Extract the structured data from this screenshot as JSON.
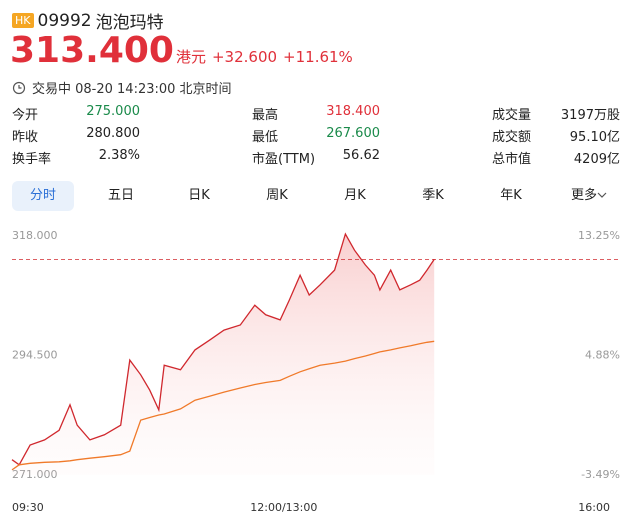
{
  "header": {
    "badge": "HK",
    "code": "09992",
    "name": "泡泡玛特"
  },
  "quote": {
    "price": "313.400",
    "currency": "港元",
    "change": "+32.600",
    "change_pct": "+11.61%",
    "status": "交易中 08-20 14:23:00 北京时间"
  },
  "stats": [
    {
      "label": "今开",
      "value": "275.000",
      "color": "#1a8a4a"
    },
    {
      "label": "最高",
      "value": "318.400",
      "color": "#e0303a"
    },
    {
      "label": "成交量",
      "value": "3197万股"
    },
    {
      "label": "昨收",
      "value": "280.800"
    },
    {
      "label": "最低",
      "value": "267.600",
      "color": "#1a8a4a"
    },
    {
      "label": "成交额",
      "value": "95.10亿"
    },
    {
      "label": "换手率",
      "value": "2.38%"
    },
    {
      "label": "市盈(TTM)",
      "value": "56.62"
    },
    {
      "label": "总市值",
      "value": "4209亿"
    }
  ],
  "tabs": [
    "分时",
    "五日",
    "日K",
    "周K",
    "月K",
    "季K",
    "年K",
    "更多"
  ],
  "chart_data": {
    "type": "line",
    "x": [
      0,
      4,
      10,
      18,
      26,
      32,
      36,
      43,
      51,
      60,
      65,
      71,
      76,
      81,
      84,
      93,
      101,
      109,
      117,
      126,
      134,
      140,
      148,
      153,
      159,
      164,
      170,
      178,
      184,
      189,
      195,
      200,
      203,
      209,
      214,
      220,
      225,
      229,
      233
    ],
    "series": [
      {
        "color": "#d0282e",
        "values": [
          274.0,
          273.0,
          276.9,
          277.9,
          279.8,
          284.8,
          280.8,
          277.9,
          278.9,
          280.8,
          293.6,
          290.7,
          287.7,
          283.8,
          292.6,
          291.7,
          295.6,
          297.5,
          299.5,
          300.5,
          304.4,
          302.5,
          301.5,
          305.4,
          310.3,
          306.4,
          308.4,
          311.3,
          318.4,
          315.2,
          312.3,
          310.3,
          307.4,
          311.3,
          307.4,
          308.4,
          309.3,
          311.3,
          313.4
        ]
      },
      {
        "color": "#f07a2a",
        "values": [
          272.0,
          273.0,
          273.3,
          273.5,
          273.6,
          273.8,
          274.0,
          274.3,
          274.6,
          275.0,
          275.7,
          281.8,
          282.3,
          282.8,
          283.0,
          284.0,
          285.7,
          286.5,
          287.3,
          288.1,
          288.8,
          289.2,
          289.6,
          290.4,
          291.3,
          291.9,
          292.6,
          293.0,
          293.4,
          293.9,
          294.4,
          294.9,
          295.2,
          295.6,
          296.0,
          296.4,
          296.8,
          297.1,
          297.3
        ]
      }
    ],
    "xlim": [
      0,
      330
    ],
    "xticks": [
      {
        "value": 0,
        "label": "09:30"
      },
      {
        "value": 150,
        "label": "12:00/13:00"
      },
      {
        "value": 330,
        "label": "16:00"
      }
    ],
    "ylim": [
      271,
      318
    ],
    "yticks": [
      {
        "value": 318,
        "label": "318.000"
      },
      {
        "value": 294.5,
        "label": "294.500"
      },
      {
        "value": 271,
        "label": "271.000"
      }
    ],
    "y2lim": [
      -3.49,
      13.25
    ],
    "y2ticks": [
      {
        "value": 13.25,
        "label": "13.25%"
      },
      {
        "value": 4.88,
        "label": "4.88%"
      },
      {
        "value": -3.49,
        "label": "-3.49%"
      }
    ]
  }
}
